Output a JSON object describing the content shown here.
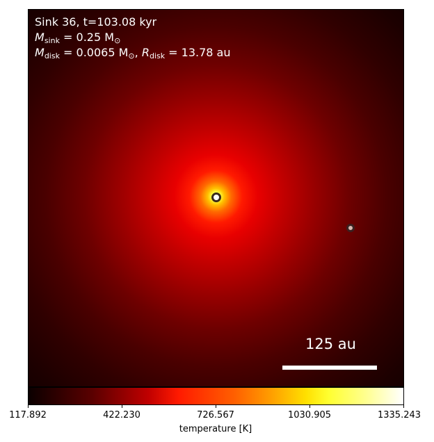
{
  "annotation": {
    "line1": "Sink 36, t=103.08 kyr",
    "mass_symbol": "M",
    "mass_sub": "sink",
    "mass_value": "= 0.25 M",
    "mass_unit_sub": "⊙",
    "disk_symbol": "M",
    "disk_sub": "disk",
    "disk_value": "= 0.0065 M",
    "disk_unit_sub": "⊙",
    "disk_sep": ", ",
    "radius_symbol": "R",
    "radius_sub": "disk",
    "radius_value": "= 13.78 au"
  },
  "scalebar": {
    "label": "125 au"
  },
  "colorbar": {
    "label": "temperature [K]",
    "ticks": [
      "117.892",
      "422.230",
      "726.567",
      "1030.905",
      "1335.243"
    ],
    "colormap": "hot"
  },
  "sinks": [
    {
      "name": "primary-sink",
      "color": "#ffffff"
    },
    {
      "name": "secondary-sink",
      "color": "#d8b8b0"
    }
  ]
}
